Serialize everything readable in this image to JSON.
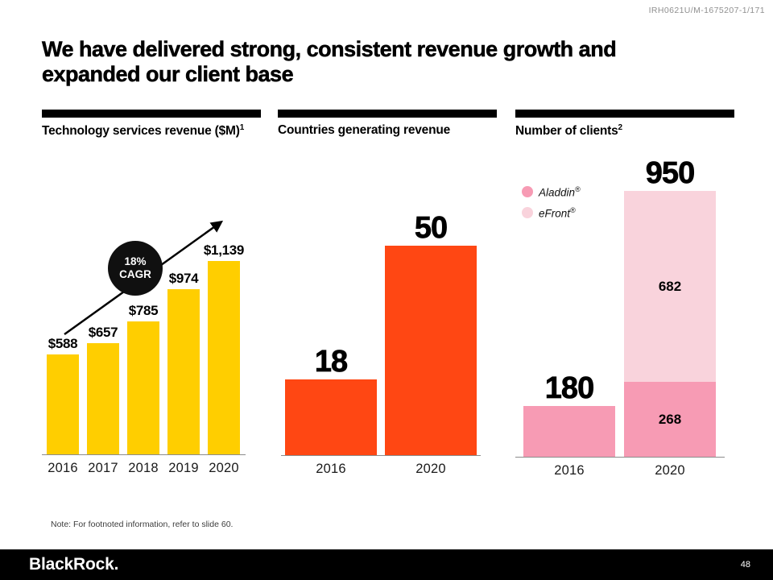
{
  "doc_code": "IRH0621U/M-1675207-1/171",
  "title": {
    "line1": "We have delivered strong, consistent revenue growth and",
    "line2": "expanded our client base"
  },
  "chart_data": [
    {
      "type": "bar",
      "title": "Technology services revenue ($M)",
      "footnote_mark": "1",
      "categories": [
        "2016",
        "2017",
        "2018",
        "2019",
        "2020"
      ],
      "values": [
        588,
        657,
        785,
        974,
        1139
      ],
      "value_labels": [
        "$588",
        "$657",
        "$785",
        "$974",
        "$1,139"
      ],
      "bar_color": "#FFCE00",
      "ylim": [
        0,
        1200
      ],
      "grid": false,
      "annotation": {
        "line1": "18%",
        "line2": "CAGR"
      }
    },
    {
      "type": "bar",
      "title": "Countries generating revenue",
      "categories": [
        "2016",
        "2020"
      ],
      "values": [
        18,
        50
      ],
      "value_labels": [
        "18",
        "50"
      ],
      "bar_color": "#FF4713",
      "ylim": [
        0,
        55
      ],
      "grid": false
    },
    {
      "type": "stacked-bar",
      "title": "Number of clients",
      "footnote_mark": "2",
      "categories": [
        "2016",
        "2020"
      ],
      "series": [
        {
          "name": "Aladdin",
          "reg": "®",
          "color": "#F79BB4",
          "values": [
            180,
            268
          ]
        },
        {
          "name": "eFront",
          "reg": "®",
          "color": "#F9D3DC",
          "values": [
            0,
            682
          ]
        }
      ],
      "total_labels": [
        "180",
        "950"
      ],
      "totals": [
        180,
        950
      ],
      "ylim": [
        0,
        1000
      ],
      "grid": false,
      "legend_position": "top-left"
    }
  ],
  "note": "Note: For footnoted information, refer to slide 60.",
  "footer": {
    "brand": "BlackRock.",
    "page_number": "48"
  },
  "colors": {
    "yellow": "#FFCE00",
    "orange": "#FF4713",
    "pink": "#F79BB4",
    "light_pink": "#F9D3DC",
    "axis_gray": "#8C8C8C",
    "footer_black": "#000000"
  }
}
